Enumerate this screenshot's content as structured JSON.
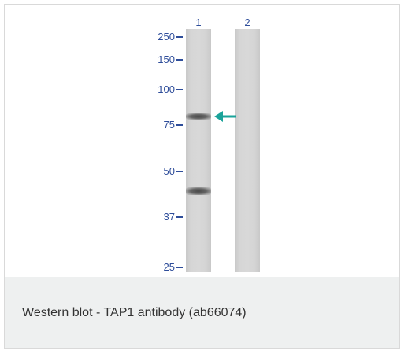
{
  "lanes": [
    {
      "label": "1"
    },
    {
      "label": "2"
    }
  ],
  "markers": [
    {
      "label": "250"
    },
    {
      "label": "150"
    },
    {
      "label": "100"
    },
    {
      "label": "75"
    },
    {
      "label": "50"
    },
    {
      "label": "37"
    },
    {
      "label": "25"
    }
  ],
  "arrow": {
    "icon": "arrow-left-icon",
    "color": "#1aa39a"
  },
  "caption": {
    "text": "Western blot - TAP1 antibody (ab66074)"
  },
  "colors": {
    "marker_text": "#2e4d9a",
    "caption_bg": "#eef0f0"
  }
}
